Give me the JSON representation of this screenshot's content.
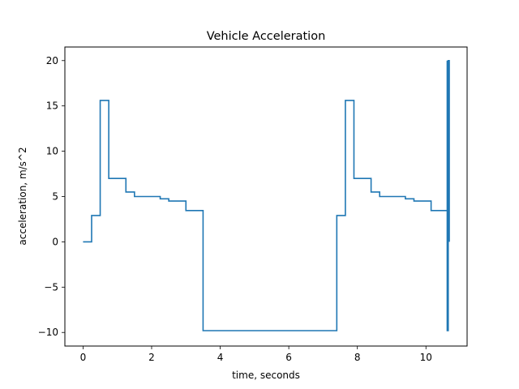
{
  "chart_data": {
    "type": "line",
    "title": "Vehicle Acceleration",
    "xlabel": "time, seconds",
    "ylabel": "acceleration, m/s^2",
    "xlim": [
      -0.53,
      11.2
    ],
    "ylim": [
      -11.5,
      21.5
    ],
    "xticks": [
      0,
      2,
      4,
      6,
      8,
      10
    ],
    "yticks": [
      -10,
      -5,
      0,
      5,
      10,
      15,
      20
    ],
    "grid": false,
    "series": [
      {
        "color": "#1f77b4",
        "step": true,
        "x": [
          0,
          0.25,
          0.5,
          0.75,
          1.25,
          1.5,
          2.25,
          2.5,
          3.0,
          3.5,
          7.4,
          7.65,
          7.9,
          8.4,
          8.65,
          9.4,
          9.65,
          10.15,
          10.62,
          10.62,
          10.62,
          10.65,
          10.65,
          10.65,
          10.68,
          10.68
        ],
        "y": [
          0,
          2.9,
          15.6,
          7.0,
          5.5,
          5.0,
          4.75,
          4.5,
          3.45,
          -9.8,
          2.9,
          15.6,
          7.0,
          5.5,
          5.0,
          4.75,
          4.5,
          3.45,
          -9.8,
          20.0,
          -9.8,
          20.0,
          -9.8,
          20.0,
          0,
          0
        ]
      }
    ]
  }
}
